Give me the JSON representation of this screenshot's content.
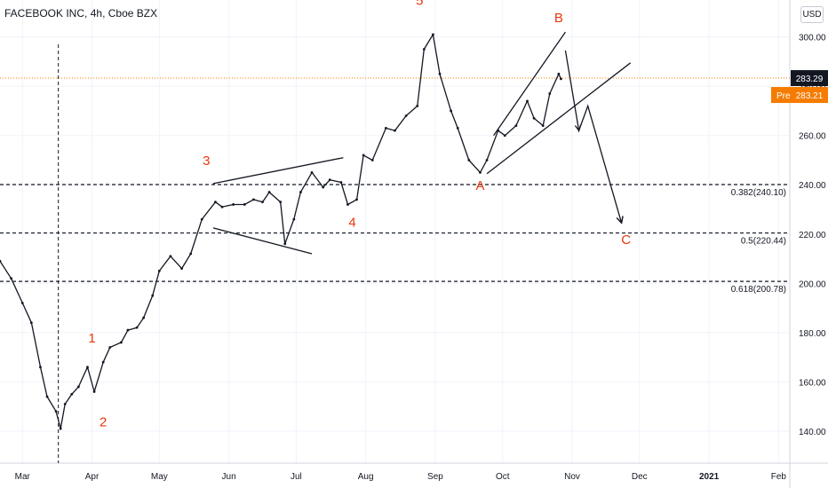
{
  "header": {
    "symbol": "FACEBOOK INC",
    "interval": "4h",
    "exchange": "Cboe BZX",
    "currency": "USD"
  },
  "colors": {
    "up_line": "#131722",
    "wave_label": "#e8370f",
    "last_price_badge": "#131722",
    "pre_badge": "#f57c00",
    "last_price_line": "#f57c00",
    "grid": "#f0f3fa"
  },
  "chart_data": {
    "type": "line",
    "title": "FACEBOOK INC, 4h, Cboe BZX",
    "xlabel": "",
    "ylabel": "",
    "ylim": [
      127,
      315
    ],
    "x_start": "2020-02-20",
    "x_end": "2021-02-06",
    "x_ticks": [
      {
        "label": "Mar",
        "x": "2020-03-01"
      },
      {
        "label": "Apr",
        "x": "2020-04-01"
      },
      {
        "label": "May",
        "x": "2020-05-01"
      },
      {
        "label": "Jun",
        "x": "2020-06-01"
      },
      {
        "label": "Jul",
        "x": "2020-07-01"
      },
      {
        "label": "Aug",
        "x": "2020-08-01"
      },
      {
        "label": "Sep",
        "x": "2020-09-01"
      },
      {
        "label": "Oct",
        "x": "2020-10-01"
      },
      {
        "label": "Nov",
        "x": "2020-11-01"
      },
      {
        "label": "Dec",
        "x": "2020-12-01"
      },
      {
        "label": "2021",
        "x": "2021-01-01",
        "bold": true
      },
      {
        "label": "Feb",
        "x": "2021-02-01"
      }
    ],
    "y_ticks": [
      140,
      160,
      180,
      200,
      220,
      240,
      260,
      280,
      300
    ],
    "y_tick_labels": [
      "140.00",
      "160.00",
      "180.00",
      "200.00",
      "220.00",
      "240.00",
      "260.00",
      "280.00",
      "300.00"
    ],
    "last_price": {
      "value": 283.29,
      "label": "283.29"
    },
    "pre_price": {
      "value": 283.21,
      "label": "283.21",
      "prefix": "Pre"
    },
    "series": [
      {
        "x": [
          "2020-02-20",
          "2020-02-25",
          "2020-03-01",
          "2020-03-05",
          "2020-03-09",
          "2020-03-12",
          "2020-03-16",
          "2020-03-18",
          "2020-03-20",
          "2020-03-23",
          "2020-03-26",
          "2020-03-30",
          "2020-04-02",
          "2020-04-06",
          "2020-04-09",
          "2020-04-14",
          "2020-04-17",
          "2020-04-21",
          "2020-04-24",
          "2020-04-28",
          "2020-05-01",
          "2020-05-06",
          "2020-05-11",
          "2020-05-15",
          "2020-05-20",
          "2020-05-26",
          "2020-05-29",
          "2020-06-03",
          "2020-06-08",
          "2020-06-12",
          "2020-06-16",
          "2020-06-19",
          "2020-06-24",
          "2020-06-26",
          "2020-06-30",
          "2020-07-03",
          "2020-07-08",
          "2020-07-13",
          "2020-07-16",
          "2020-07-21",
          "2020-07-24",
          "2020-07-28",
          "2020-07-31",
          "2020-08-04",
          "2020-08-10",
          "2020-08-14",
          "2020-08-19",
          "2020-08-24",
          "2020-08-27",
          "2020-08-31",
          "2020-09-03",
          "2020-09-08",
          "2020-09-11",
          "2020-09-16",
          "2020-09-21",
          "2020-09-24",
          "2020-09-29",
          "2020-10-02",
          "2020-10-07",
          "2020-10-12",
          "2020-10-15",
          "2020-10-19",
          "2020-10-22",
          "2020-10-26",
          "2020-10-27"
        ],
        "values": [
          209,
          202,
          192,
          184,
          166,
          154,
          148,
          141,
          151,
          155,
          158,
          166,
          156,
          168,
          174,
          176,
          181,
          182,
          186,
          195,
          205,
          211,
          206,
          212,
          226,
          233,
          231,
          232,
          232,
          234,
          233,
          237,
          233,
          216,
          226,
          237,
          245,
          239,
          242,
          241,
          232,
          234,
          252,
          250,
          263,
          262,
          268,
          272,
          295,
          301,
          285,
          270,
          263,
          250,
          245,
          250,
          262,
          260,
          264,
          274,
          267,
          264,
          277,
          285,
          283
        ]
      }
    ],
    "annotations": {
      "fib_levels": [
        {
          "value": 240.1,
          "label": "0.382(240.10)"
        },
        {
          "value": 220.44,
          "label": "0.5(220.44)"
        },
        {
          "value": 200.78,
          "label": "0.618(200.78)"
        }
      ],
      "wave_labels": [
        {
          "text": "1",
          "x": "2020-04-01",
          "y": 176
        },
        {
          "text": "2",
          "x": "2020-04-06",
          "y": 142
        },
        {
          "text": "3",
          "x": "2020-05-22",
          "y": 248
        },
        {
          "text": "4",
          "x": "2020-07-26",
          "y": 223
        },
        {
          "text": "5",
          "x": "2020-08-25",
          "y": 313
        },
        {
          "text": "A",
          "x": "2020-09-21",
          "y": 238
        },
        {
          "text": "B",
          "x": "2020-10-26",
          "y": 306
        },
        {
          "text": "C",
          "x": "2020-11-25",
          "y": 216
        }
      ],
      "vertical_marker": "2020-03-17",
      "trend_lines": [
        {
          "x1": "2020-05-25",
          "y1": 240.5,
          "x2": "2020-07-22",
          "y2": 251
        },
        {
          "x1": "2020-05-25",
          "y1": 222.5,
          "x2": "2020-07-08",
          "y2": 212
        },
        {
          "x1": "2020-09-24",
          "y1": 244.5,
          "x2": "2020-11-27",
          "y2": 289.5
        },
        {
          "x1": "2020-09-27",
          "y1": 260,
          "x2": "2020-10-29",
          "y2": 302
        }
      ],
      "projection_path": [
        {
          "x": "2020-10-29",
          "y": 294.5
        },
        {
          "x": "2020-11-04",
          "y": 262
        },
        {
          "x": "2020-11-08",
          "y": 272
        },
        {
          "x": "2020-11-23",
          "y": 224.5
        }
      ]
    }
  }
}
